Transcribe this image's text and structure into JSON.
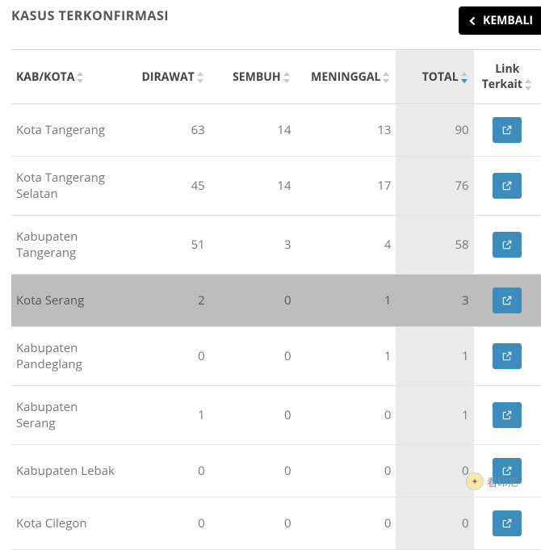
{
  "header": {
    "title": "KASUS TERKONFIRMASI",
    "back_label": "KEMBALI"
  },
  "table": {
    "columns": {
      "region": "KAB/KOTA",
      "treated": "DIRAWAT",
      "recovered": "SEMBUH",
      "deaths": "MENINGGAL",
      "total": "TOTAL",
      "link": "Link Terkait"
    },
    "widths": {
      "region": 130,
      "treated": 100,
      "recovered": 100,
      "deaths": 116,
      "total": 90,
      "link": 78
    },
    "sorted_column": "total",
    "rows": [
      {
        "region": "Kota Tangerang",
        "treated": 63,
        "recovered": 14,
        "deaths": 13,
        "total": 90,
        "highlight": false
      },
      {
        "region": "Kota Tangerang Selatan",
        "treated": 45,
        "recovered": 14,
        "deaths": 17,
        "total": 76,
        "highlight": false
      },
      {
        "region": "Kabupaten Tangerang",
        "treated": 51,
        "recovered": 3,
        "deaths": 4,
        "total": 58,
        "highlight": false
      },
      {
        "region": "Kota Serang",
        "treated": 2,
        "recovered": 0,
        "deaths": 1,
        "total": 3,
        "highlight": true
      },
      {
        "region": "Kabupaten Pandeglang",
        "treated": 0,
        "recovered": 0,
        "deaths": 1,
        "total": 1,
        "highlight": false
      },
      {
        "region": "Kabupaten Serang",
        "treated": 1,
        "recovered": 0,
        "deaths": 0,
        "total": 1,
        "highlight": false
      },
      {
        "region": "Kabupaten Lebak",
        "treated": 0,
        "recovered": 0,
        "deaths": 0,
        "total": 0,
        "highlight": false
      },
      {
        "region": "Kota Cilegon",
        "treated": 0,
        "recovered": 0,
        "deaths": 0,
        "total": 0,
        "highlight": false
      }
    ]
  },
  "colors": {
    "accent": "#3c8dbc",
    "back_btn": "#000000",
    "total_bg": "#eaeaea",
    "row_hover": "#bdbdbd"
  },
  "watermark": {
    "text": "看印尼"
  }
}
